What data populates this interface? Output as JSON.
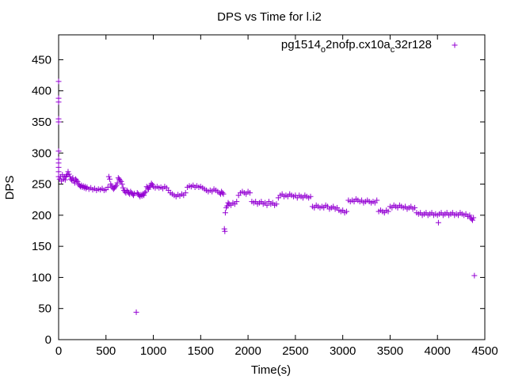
{
  "colors": {
    "series": "#9400d3",
    "axis": "#000000",
    "background": "#ffffff"
  },
  "chart_data": {
    "type": "scatter",
    "title": "DPS vs Time for l.i2",
    "xlabel": "Time(s)",
    "ylabel": "DPS",
    "xlim": [
      0,
      4500
    ],
    "ylim": [
      0,
      490
    ],
    "xticks": [
      0,
      500,
      1000,
      1500,
      2000,
      2500,
      3000,
      3500,
      4000,
      4500
    ],
    "yticks": [
      0,
      50,
      100,
      150,
      200,
      250,
      300,
      350,
      400,
      450
    ],
    "grid": false,
    "legend_position": "top-right",
    "marker": "+",
    "series": [
      {
        "name": "pg1514",
        "name_sub1": "o",
        "name_mid": "2nofp.cx10a",
        "name_sub2": "c",
        "name_end": "32r128",
        "points": [
          [
            0,
            415
          ],
          [
            0,
            388
          ],
          [
            0,
            382
          ],
          [
            0,
            355
          ],
          [
            0,
            350
          ],
          [
            0,
            303
          ],
          [
            0,
            290
          ],
          [
            0,
            284
          ],
          [
            0,
            277
          ],
          [
            0,
            270
          ],
          [
            0,
            262
          ],
          [
            10,
            258
          ],
          [
            20,
            262
          ],
          [
            30,
            255
          ],
          [
            40,
            265
          ],
          [
            50,
            258
          ],
          [
            60,
            262
          ],
          [
            70,
            257
          ],
          [
            80,
            263
          ],
          [
            90,
            265
          ],
          [
            100,
            270
          ],
          [
            110,
            266
          ],
          [
            120,
            262
          ],
          [
            130,
            258
          ],
          [
            140,
            256
          ],
          [
            150,
            260
          ],
          [
            160,
            255
          ],
          [
            170,
            252
          ],
          [
            180,
            258
          ],
          [
            190,
            256
          ],
          [
            200,
            254
          ],
          [
            210,
            250
          ],
          [
            220,
            248
          ],
          [
            230,
            246
          ],
          [
            240,
            248
          ],
          [
            250,
            245
          ],
          [
            260,
            247
          ],
          [
            270,
            244
          ],
          [
            280,
            246
          ],
          [
            290,
            243
          ],
          [
            300,
            245
          ],
          [
            320,
            242
          ],
          [
            340,
            244
          ],
          [
            360,
            241
          ],
          [
            380,
            243
          ],
          [
            400,
            240
          ],
          [
            420,
            242
          ],
          [
            440,
            241
          ],
          [
            460,
            243
          ],
          [
            480,
            240
          ],
          [
            500,
            241
          ],
          [
            520,
            245
          ],
          [
            530,
            262
          ],
          [
            540,
            258
          ],
          [
            550,
            250
          ],
          [
            560,
            247
          ],
          [
            570,
            244
          ],
          [
            580,
            242
          ],
          [
            590,
            244
          ],
          [
            600,
            246
          ],
          [
            610,
            248
          ],
          [
            620,
            252
          ],
          [
            630,
            260
          ],
          [
            640,
            258
          ],
          [
            650,
            256
          ],
          [
            660,
            254
          ],
          [
            670,
            250
          ],
          [
            680,
            244
          ],
          [
            690,
            240
          ],
          [
            700,
            238
          ],
          [
            710,
            236
          ],
          [
            720,
            240
          ],
          [
            730,
            238
          ],
          [
            740,
            236
          ],
          [
            750,
            234
          ],
          [
            760,
            238
          ],
          [
            770,
            236
          ],
          [
            780,
            234
          ],
          [
            790,
            232
          ],
          [
            800,
            235
          ],
          [
            820,
            44
          ],
          [
            830,
            236
          ],
          [
            840,
            234
          ],
          [
            850,
            232
          ],
          [
            860,
            230
          ],
          [
            870,
            233
          ],
          [
            880,
            231
          ],
          [
            890,
            234
          ],
          [
            900,
            232
          ],
          [
            910,
            236
          ],
          [
            920,
            238
          ],
          [
            930,
            246
          ],
          [
            940,
            244
          ],
          [
            950,
            242
          ],
          [
            960,
            245
          ],
          [
            970,
            248
          ],
          [
            980,
            251
          ],
          [
            990,
            249
          ],
          [
            1000,
            246
          ],
          [
            1020,
            244
          ],
          [
            1040,
            246
          ],
          [
            1060,
            244
          ],
          [
            1080,
            245
          ],
          [
            1100,
            243
          ],
          [
            1120,
            246
          ],
          [
            1140,
            244
          ],
          [
            1160,
            240
          ],
          [
            1180,
            236
          ],
          [
            1200,
            234
          ],
          [
            1220,
            232
          ],
          [
            1240,
            230
          ],
          [
            1260,
            233
          ],
          [
            1280,
            231
          ],
          [
            1300,
            234
          ],
          [
            1320,
            232
          ],
          [
            1340,
            236
          ],
          [
            1360,
            245
          ],
          [
            1380,
            247
          ],
          [
            1400,
            246
          ],
          [
            1420,
            248
          ],
          [
            1440,
            245
          ],
          [
            1460,
            247
          ],
          [
            1480,
            245
          ],
          [
            1500,
            246
          ],
          [
            1520,
            244
          ],
          [
            1540,
            242
          ],
          [
            1560,
            240
          ],
          [
            1580,
            238
          ],
          [
            1600,
            240
          ],
          [
            1620,
            238
          ],
          [
            1640,
            242
          ],
          [
            1660,
            240
          ],
          [
            1680,
            238
          ],
          [
            1700,
            236
          ],
          [
            1710,
            234
          ],
          [
            1720,
            238
          ],
          [
            1730,
            236
          ],
          [
            1740,
            234
          ],
          [
            1750,
            178
          ],
          [
            1755,
            174
          ],
          [
            1760,
            204
          ],
          [
            1770,
            212
          ],
          [
            1780,
            215
          ],
          [
            1790,
            220
          ],
          [
            1800,
            218
          ],
          [
            1820,
            216
          ],
          [
            1840,
            220
          ],
          [
            1860,
            218
          ],
          [
            1880,
            222
          ],
          [
            1900,
            232
          ],
          [
            1920,
            236
          ],
          [
            1940,
            238
          ],
          [
            1960,
            236
          ],
          [
            1980,
            234
          ],
          [
            2000,
            238
          ],
          [
            2020,
            236
          ],
          [
            2040,
            222
          ],
          [
            2060,
            220
          ],
          [
            2080,
            222
          ],
          [
            2100,
            218
          ],
          [
            2120,
            220
          ],
          [
            2140,
            222
          ],
          [
            2160,
            218
          ],
          [
            2180,
            220
          ],
          [
            2200,
            216
          ],
          [
            2220,
            222
          ],
          [
            2240,
            218
          ],
          [
            2260,
            220
          ],
          [
            2280,
            216
          ],
          [
            2300,
            218
          ],
          [
            2320,
            228
          ],
          [
            2340,
            232
          ],
          [
            2360,
            234
          ],
          [
            2380,
            230
          ],
          [
            2400,
            232
          ],
          [
            2420,
            230
          ],
          [
            2440,
            234
          ],
          [
            2460,
            232
          ],
          [
            2480,
            230
          ],
          [
            2500,
            232
          ],
          [
            2520,
            228
          ],
          [
            2540,
            232
          ],
          [
            2560,
            230
          ],
          [
            2580,
            228
          ],
          [
            2600,
            232
          ],
          [
            2620,
            230
          ],
          [
            2640,
            228
          ],
          [
            2660,
            230
          ],
          [
            2680,
            214
          ],
          [
            2700,
            212
          ],
          [
            2720,
            216
          ],
          [
            2740,
            214
          ],
          [
            2760,
            212
          ],
          [
            2780,
            214
          ],
          [
            2800,
            212
          ],
          [
            2820,
            216
          ],
          [
            2840,
            214
          ],
          [
            2860,
            210
          ],
          [
            2880,
            212
          ],
          [
            2900,
            214
          ],
          [
            2920,
            210
          ],
          [
            2940,
            212
          ],
          [
            2960,
            208
          ],
          [
            2980,
            206
          ],
          [
            3000,
            208
          ],
          [
            3020,
            204
          ],
          [
            3040,
            206
          ],
          [
            3060,
            224
          ],
          [
            3080,
            222
          ],
          [
            3100,
            224
          ],
          [
            3120,
            222
          ],
          [
            3140,
            226
          ],
          [
            3160,
            224
          ],
          [
            3180,
            222
          ],
          [
            3200,
            224
          ],
          [
            3220,
            220
          ],
          [
            3240,
            222
          ],
          [
            3260,
            224
          ],
          [
            3280,
            222
          ],
          [
            3300,
            220
          ],
          [
            3320,
            222
          ],
          [
            3340,
            220
          ],
          [
            3360,
            224
          ],
          [
            3380,
            206
          ],
          [
            3400,
            208
          ],
          [
            3420,
            206
          ],
          [
            3440,
            204
          ],
          [
            3460,
            208
          ],
          [
            3480,
            206
          ],
          [
            3500,
            214
          ],
          [
            3520,
            212
          ],
          [
            3540,
            216
          ],
          [
            3560,
            214
          ],
          [
            3580,
            212
          ],
          [
            3600,
            216
          ],
          [
            3620,
            214
          ],
          [
            3640,
            212
          ],
          [
            3660,
            214
          ],
          [
            3680,
            210
          ],
          [
            3700,
            212
          ],
          [
            3720,
            214
          ],
          [
            3740,
            210
          ],
          [
            3760,
            212
          ],
          [
            3780,
            204
          ],
          [
            3800,
            202
          ],
          [
            3820,
            204
          ],
          [
            3840,
            200
          ],
          [
            3860,
            202
          ],
          [
            3880,
            204
          ],
          [
            3900,
            200
          ],
          [
            3920,
            202
          ],
          [
            3940,
            204
          ],
          [
            3960,
            200
          ],
          [
            3980,
            202
          ],
          [
            4000,
            200
          ],
          [
            4010,
            188
          ],
          [
            4020,
            202
          ],
          [
            4040,
            204
          ],
          [
            4060,
            200
          ],
          [
            4080,
            202
          ],
          [
            4100,
            204
          ],
          [
            4120,
            200
          ],
          [
            4140,
            202
          ],
          [
            4160,
            204
          ],
          [
            4180,
            200
          ],
          [
            4200,
            202
          ],
          [
            4220,
            200
          ],
          [
            4240,
            204
          ],
          [
            4260,
            202
          ],
          [
            4280,
            200
          ],
          [
            4300,
            202
          ],
          [
            4320,
            198
          ],
          [
            4340,
            200
          ],
          [
            4350,
            196
          ],
          [
            4360,
            194
          ],
          [
            4370,
            192
          ],
          [
            4380,
            196
          ],
          [
            4390,
            103
          ]
        ]
      }
    ]
  }
}
